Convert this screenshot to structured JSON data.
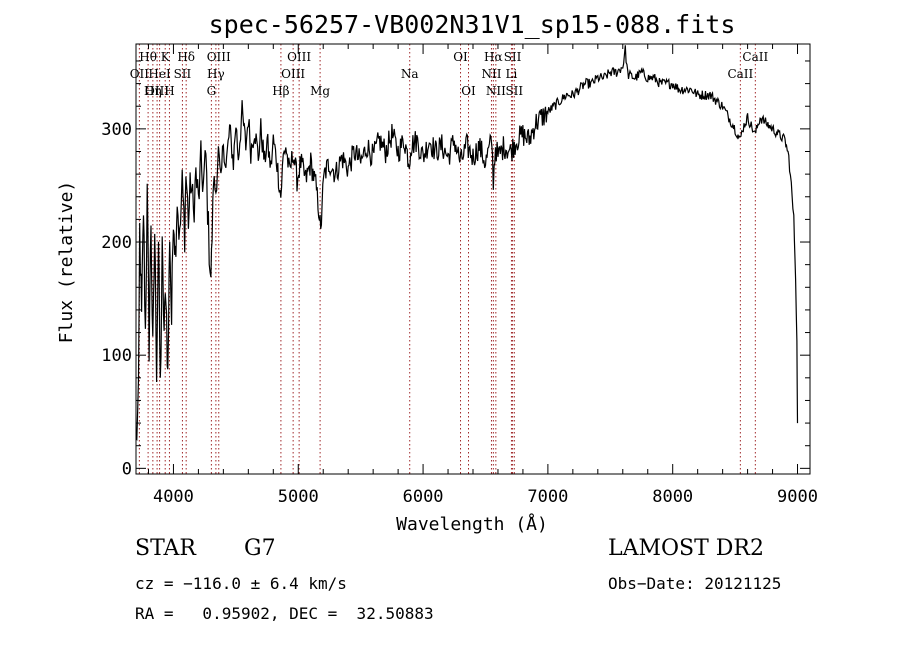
{
  "chart_data": {
    "type": "line",
    "title": "spec-56257-VB002N31V1_sp15-088.fits",
    "xlabel": "Wavelength (Å)",
    "ylabel": "Flux (relative)",
    "xlim": [
      3700,
      9100
    ],
    "ylim": [
      -5,
      375
    ],
    "xticks": [
      4000,
      5000,
      6000,
      7000,
      8000,
      9000
    ],
    "yticks": [
      0,
      100,
      200,
      300
    ],
    "grid": false,
    "color": "#000000",
    "line_marker_color": "#a0282a",
    "spectrum_points": [
      [
        3700,
        20
      ],
      [
        3720,
        60
      ],
      [
        3730,
        210
      ],
      [
        3745,
        130
      ],
      [
        3760,
        230
      ],
      [
        3775,
        120
      ],
      [
        3790,
        240
      ],
      [
        3805,
        110
      ],
      [
        3820,
        220
      ],
      [
        3835,
        100
      ],
      [
        3850,
        210
      ],
      [
        3865,
        90
      ],
      [
        3880,
        200
      ],
      [
        3895,
        70
      ],
      [
        3910,
        190
      ],
      [
        3925,
        120
      ],
      [
        3940,
        160
      ],
      [
        3955,
        80
      ],
      [
        3970,
        210
      ],
      [
        3985,
        130
      ],
      [
        4000,
        230
      ],
      [
        4015,
        190
      ],
      [
        4030,
        240
      ],
      [
        4050,
        200
      ],
      [
        4070,
        250
      ],
      [
        4090,
        210
      ],
      [
        4100,
        260
      ],
      [
        4120,
        220
      ],
      [
        4140,
        255
      ],
      [
        4160,
        225
      ],
      [
        4180,
        260
      ],
      [
        4200,
        235
      ],
      [
        4220,
        270
      ],
      [
        4240,
        250
      ],
      [
        4260,
        275
      ],
      [
        4280,
        210
      ],
      [
        4300,
        170
      ],
      [
        4310,
        205
      ],
      [
        4320,
        255
      ],
      [
        4340,
        245
      ],
      [
        4360,
        280
      ],
      [
        4380,
        250
      ],
      [
        4400,
        290
      ],
      [
        4420,
        265
      ],
      [
        4450,
        300
      ],
      [
        4480,
        270
      ],
      [
        4500,
        305
      ],
      [
        4520,
        275
      ],
      [
        4550,
        315
      ],
      [
        4580,
        285
      ],
      [
        4600,
        310
      ],
      [
        4620,
        280
      ],
      [
        4650,
        300
      ],
      [
        4680,
        275
      ],
      [
        4700,
        300
      ],
      [
        4730,
        270
      ],
      [
        4750,
        290
      ],
      [
        4780,
        265
      ],
      [
        4800,
        290
      ],
      [
        4830,
        270
      ],
      [
        4860,
        240
      ],
      [
        4880,
        275
      ],
      [
        4900,
        285
      ],
      [
        4930,
        260
      ],
      [
        4960,
        280
      ],
      [
        4990,
        255
      ],
      [
        5020,
        270
      ],
      [
        5060,
        255
      ],
      [
        5100,
        270
      ],
      [
        5140,
        250
      ],
      [
        5170,
        225
      ],
      [
        5180,
        205
      ],
      [
        5190,
        235
      ],
      [
        5210,
        260
      ],
      [
        5250,
        270
      ],
      [
        5300,
        260
      ],
      [
        5350,
        275
      ],
      [
        5400,
        265
      ],
      [
        5450,
        280
      ],
      [
        5500,
        270
      ],
      [
        5550,
        285
      ],
      [
        5600,
        275
      ],
      [
        5650,
        290
      ],
      [
        5700,
        280
      ],
      [
        5750,
        295
      ],
      [
        5800,
        280
      ],
      [
        5850,
        290
      ],
      [
        5890,
        270
      ],
      [
        5900,
        285
      ],
      [
        5950,
        290
      ],
      [
        6000,
        275
      ],
      [
        6050,
        290
      ],
      [
        6100,
        280
      ],
      [
        6150,
        285
      ],
      [
        6200,
        275
      ],
      [
        6250,
        290
      ],
      [
        6300,
        270
      ],
      [
        6350,
        285
      ],
      [
        6400,
        275
      ],
      [
        6450,
        285
      ],
      [
        6500,
        270
      ],
      [
        6550,
        290
      ],
      [
        6563,
        255
      ],
      [
        6580,
        285
      ],
      [
        6600,
        275
      ],
      [
        6650,
        285
      ],
      [
        6700,
        280
      ],
      [
        6750,
        290
      ],
      [
        6800,
        295
      ],
      [
        6850,
        290
      ],
      [
        6900,
        305
      ],
      [
        6950,
        310
      ],
      [
        7000,
        315
      ],
      [
        7050,
        320
      ],
      [
        7100,
        325
      ],
      [
        7150,
        330
      ],
      [
        7200,
        330
      ],
      [
        7250,
        335
      ],
      [
        7300,
        340
      ],
      [
        7350,
        340
      ],
      [
        7400,
        345
      ],
      [
        7450,
        345
      ],
      [
        7500,
        350
      ],
      [
        7550,
        350
      ],
      [
        7600,
        355
      ],
      [
        7620,
        370
      ],
      [
        7640,
        348
      ],
      [
        7700,
        345
      ],
      [
        7750,
        350
      ],
      [
        7800,
        345
      ],
      [
        7850,
        345
      ],
      [
        7900,
        340
      ],
      [
        7950,
        340
      ],
      [
        8000,
        340
      ],
      [
        8050,
        335
      ],
      [
        8100,
        335
      ],
      [
        8150,
        335
      ],
      [
        8200,
        330
      ],
      [
        8250,
        330
      ],
      [
        8300,
        330
      ],
      [
        8350,
        325
      ],
      [
        8400,
        320
      ],
      [
        8450,
        310
      ],
      [
        8500,
        300
      ],
      [
        8540,
        290
      ],
      [
        8560,
        300
      ],
      [
        8600,
        310
      ],
      [
        8640,
        300
      ],
      [
        8660,
        295
      ],
      [
        8700,
        310
      ],
      [
        8750,
        305
      ],
      [
        8800,
        300
      ],
      [
        8850,
        295
      ],
      [
        8900,
        290
      ],
      [
        8930,
        275
      ],
      [
        8950,
        250
      ],
      [
        8970,
        220
      ],
      [
        8985,
        170
      ],
      [
        8995,
        110
      ],
      [
        9000,
        40
      ]
    ],
    "lines": [
      {
        "name": "Hθ",
        "x": 3797,
        "row": 1
      },
      {
        "name": "K",
        "x": 3934,
        "row": 1
      },
      {
        "name": "Hδ",
        "x": 4102,
        "row": 1
      },
      {
        "name": "OIII",
        "x": 4363,
        "row": 1
      },
      {
        "name": "OIII",
        "x": 5007,
        "row": 1
      },
      {
        "name": "OI",
        "x": 6300,
        "row": 1
      },
      {
        "name": "Hα",
        "x": 6563,
        "row": 1
      },
      {
        "name": "SII",
        "x": 6717,
        "row": 1
      },
      {
        "name": "CaII",
        "x": 8662,
        "row": 1
      },
      {
        "name": "OII",
        "x": 3727,
        "row": 2
      },
      {
        "name": "HeI",
        "x": 3889,
        "row": 2
      },
      {
        "name": "SII",
        "x": 4072,
        "row": 2
      },
      {
        "name": "Hγ",
        "x": 4340,
        "row": 2
      },
      {
        "name": "OIII",
        "x": 4959,
        "row": 2
      },
      {
        "name": "Na",
        "x": 5893,
        "row": 2
      },
      {
        "name": "NII",
        "x": 6548,
        "row": 2
      },
      {
        "name": "Li",
        "x": 6708,
        "row": 2
      },
      {
        "name": "CaII",
        "x": 8542,
        "row": 2
      },
      {
        "name": "OIII",
        "x": 3869,
        "row": 3
      },
      {
        "name": "Hη",
        "x": 3835,
        "row": 3
      },
      {
        "name": "H",
        "x": 3968,
        "row": 3
      },
      {
        "name": "G",
        "x": 4304,
        "row": 3
      },
      {
        "name": "Hβ",
        "x": 4861,
        "row": 3
      },
      {
        "name": "Mg",
        "x": 5175,
        "row": 3
      },
      {
        "name": "OI",
        "x": 6364,
        "row": 3
      },
      {
        "name": "NII",
        "x": 6583,
        "row": 3
      },
      {
        "name": "SII",
        "x": 6731,
        "row": 3
      }
    ]
  },
  "info": {
    "object_class": "STAR",
    "subclass": "G7",
    "survey": "LAMOST DR2",
    "redshift": "cz = −116.0 ± 6.4 km/s",
    "obs_date": "Obs−Date: 20121125",
    "coords": "RA =   0.95902, DEC =  32.50883"
  }
}
